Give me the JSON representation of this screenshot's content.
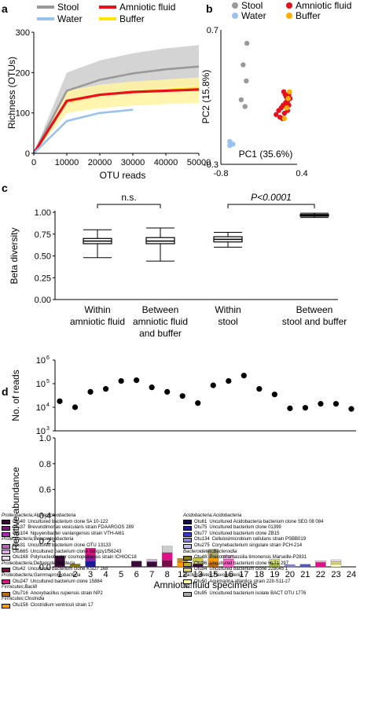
{
  "chart_data": [
    {
      "panel": "a",
      "type": "line",
      "ylabel": "Richness (OTUs)",
      "xlabel": "OTU reads",
      "xlim": [
        0,
        50000
      ],
      "ylim": [
        0,
        300
      ],
      "xticks": [
        0,
        10000,
        20000,
        30000,
        40000,
        50000
      ],
      "yticks": [
        0,
        100,
        200,
        300
      ],
      "legend": [
        "Stool",
        "Water",
        "Amniotic fluid",
        "Buffer"
      ],
      "series": [
        {
          "name": "Stool",
          "color": "#999999",
          "band_color": "#cccccc",
          "x": [
            0,
            10000,
            20000,
            30000,
            40000,
            50000
          ],
          "y": [
            0,
            155,
            182,
            198,
            208,
            215
          ],
          "lower": [
            0,
            118,
            140,
            155,
            163,
            170
          ],
          "upper": [
            0,
            200,
            230,
            248,
            260,
            268
          ]
        },
        {
          "name": "Buffer",
          "color": "#ffe600",
          "band_color": "#fff3a0",
          "x": [
            0,
            10000,
            20000,
            30000,
            40000,
            50000
          ],
          "y": [
            0,
            128,
            145,
            152,
            157,
            162
          ],
          "lower": [
            0,
            100,
            112,
            118,
            122,
            125
          ],
          "upper": [
            0,
            155,
            170,
            178,
            183,
            188
          ]
        },
        {
          "name": "Amniotic fluid",
          "color": "#e8101a",
          "x": [
            0,
            10000,
            20000,
            30000,
            40000,
            50000
          ],
          "y": [
            0,
            130,
            145,
            152,
            155,
            158
          ]
        },
        {
          "name": "Water",
          "color": "#99c2ee",
          "x": [
            0,
            10000,
            20000,
            30000
          ],
          "y": [
            0,
            80,
            100,
            108
          ]
        }
      ]
    },
    {
      "panel": "b",
      "type": "scatter",
      "xlabel": "PC1 (35.6%)",
      "ylabel": "PC2 (15.8%)",
      "xlim": [
        -0.8,
        0.4
      ],
      "ylim": [
        -0.3,
        0.7
      ],
      "xtick_labels": [
        "-0.8",
        "0.4"
      ],
      "ytick_labels": [
        "-0.3",
        "0.7"
      ],
      "legend": [
        "Stool",
        "Water",
        "Amniotic fluid",
        "Buffer"
      ],
      "series": [
        {
          "name": "Stool",
          "color": "#999999",
          "points": [
            [
              -0.39,
              0.6
            ],
            [
              -0.45,
              0.44
            ],
            [
              -0.4,
              0.32
            ],
            [
              -0.48,
              0.18
            ],
            [
              -0.42,
              0.13
            ]
          ]
        },
        {
          "name": "Water",
          "color": "#99c2ee",
          "points": [
            [
              -0.66,
              -0.13
            ],
            [
              -0.61,
              -0.15
            ],
            [
              -0.66,
              -0.16
            ]
          ]
        },
        {
          "name": "Amniotic fluid",
          "color": "#e8101a",
          "points": [
            [
              0.19,
              0.24
            ],
            [
              0.21,
              0.22
            ],
            [
              0.23,
              0.2
            ],
            [
              0.25,
              0.17
            ],
            [
              0.22,
              0.16
            ],
            [
              0.18,
              0.14
            ],
            [
              0.15,
              0.12
            ],
            [
              0.11,
              0.1
            ],
            [
              0.07,
              0.07
            ],
            [
              0.13,
              0.05
            ],
            [
              0.17,
              0.04
            ],
            [
              0.23,
              0.13
            ],
            [
              0.27,
              0.14
            ],
            [
              0.27,
              0.22
            ],
            [
              0.29,
              0.19
            ],
            [
              0.2,
              0.08
            ],
            [
              0.25,
              0.1
            ]
          ]
        },
        {
          "name": "Buffer",
          "color": "#ffb000",
          "points": [
            [
              0.28,
              0.24
            ],
            [
              0.24,
              0.12
            ],
            [
              0.2,
              0.04
            ],
            [
              0.26,
              0.19
            ]
          ]
        }
      ]
    },
    {
      "panel": "c",
      "type": "boxplot",
      "ylabel": "Beta diversity",
      "ylim": [
        0,
        1.0
      ],
      "yticks": [
        "0.00",
        "0.25",
        "0.50",
        "0.75",
        "1.00"
      ],
      "categories": [
        "Within amniotic fluid",
        "Between amniotic fluid and buffer",
        "Within stool",
        "Between stool and buffer"
      ],
      "category_lines": [
        [
          "Within",
          "amniotic fluid"
        ],
        [
          "Between",
          "amniotic fluid",
          "and buffer"
        ],
        [
          "Within",
          "stool"
        ],
        [
          "Between",
          "stool and buffer"
        ]
      ],
      "boxes": [
        {
          "min": 0.48,
          "q1": 0.64,
          "median": 0.67,
          "q3": 0.7,
          "max": 0.8
        },
        {
          "min": 0.44,
          "q1": 0.64,
          "median": 0.67,
          "q3": 0.71,
          "max": 0.82
        },
        {
          "min": 0.6,
          "q1": 0.66,
          "median": 0.69,
          "q3": 0.72,
          "max": 0.77
        },
        {
          "min": 0.94,
          "q1": 0.955,
          "median": 0.965,
          "q3": 0.975,
          "max": 0.99
        }
      ],
      "annotations": [
        {
          "text": "n.s.",
          "between": [
            0,
            1
          ]
        },
        {
          "text": "P<0.0001",
          "between": [
            2,
            3
          ]
        }
      ]
    },
    {
      "panel": "d",
      "type": "scatter+stacked-bar",
      "top_ylabel": "No. of reads",
      "top_yscale": "log",
      "top_yticks": [
        {
          "base": "10",
          "exp": "3",
          "value": 1000
        },
        {
          "base": "10",
          "exp": "4",
          "value": 10000
        },
        {
          "base": "10",
          "exp": "5",
          "value": 100000
        },
        {
          "base": "10",
          "exp": "6",
          "value": 1000000
        }
      ],
      "bottom_ylabel": "Relative abundance",
      "bottom_ylim": [
        0,
        1.0
      ],
      "bottom_yticks": [
        "0.0",
        "0.2",
        "0.4",
        "0.6",
        "0.8",
        "1.0"
      ],
      "xlabel": "Amniotic fluid specimens",
      "categories": [
        "1",
        "2",
        "3",
        "4",
        "5",
        "6",
        "7",
        "8",
        "12",
        "13",
        "15",
        "16",
        "17",
        "18",
        "19",
        "20",
        "21",
        "22",
        "23",
        "24"
      ],
      "reads": [
        18000,
        10000,
        45000,
        60000,
        130000,
        140000,
        70000,
        45000,
        30000,
        15000,
        85000,
        130000,
        220000,
        60000,
        35000,
        9000,
        9500,
        14000,
        14000,
        8500
      ],
      "stacks": [
        [
          {
            "c": "#3a0a3a",
            "v": 0.085
          }
        ],
        [
          {
            "c": "#8a7a12",
            "v": 0.022
          }
        ],
        [
          {
            "c": "#1a1a9a",
            "v": 0.045
          },
          {
            "c": "#8a1aa0",
            "v": 0.04
          },
          {
            "c": "#e01088",
            "v": 0.06
          }
        ],
        [],
        [],
        [
          {
            "c": "#3a0a3a",
            "v": 0.045
          }
        ],
        [
          {
            "c": "#3a0a3a",
            "v": 0.04
          },
          {
            "c": "#d8b0e8",
            "v": 0.018
          }
        ],
        [
          {
            "c": "#7a0a4a",
            "v": 0.05
          },
          {
            "c": "#e01088",
            "v": 0.06
          },
          {
            "c": "#cccccc",
            "v": 0.05
          }
        ],
        [
          {
            "c": "#ff9900",
            "v": 0.035
          },
          {
            "c": "#c08a2a",
            "v": 0.03
          }
        ],
        [
          {
            "c": "#3a0a3a",
            "v": 0.022
          },
          {
            "c": "#dddd88",
            "v": 0.018
          },
          {
            "c": "#cccc44",
            "v": 0.03
          }
        ],
        [
          {
            "c": "#c06a10",
            "v": 0.03
          },
          {
            "c": "#ff9900",
            "v": 0.04
          },
          {
            "c": "#b0a870",
            "v": 0.065
          }
        ],
        [
          {
            "c": "#ff66cc",
            "v": 0.06
          },
          {
            "c": "#f8c8e8",
            "v": 0.03
          }
        ],
        [],
        [],
        [
          {
            "c": "#a8c040",
            "v": 0.03
          },
          {
            "c": "#e6e68a",
            "v": 0.03
          }
        ],
        [
          {
            "c": "#8888cc",
            "v": 0.018
          }
        ],
        [
          {
            "c": "#5555bb",
            "v": 0.02
          }
        ],
        [
          {
            "c": "#e01088",
            "v": 0.035
          },
          {
            "c": "#f8b8d8",
            "v": 0.012
          }
        ],
        [
          {
            "c": "#ffffcc",
            "v": 0.02
          },
          {
            "c": "#dddd66",
            "v": 0.02
          },
          {
            "c": "#eedcee",
            "v": 0.015
          }
        ],
        []
      ]
    }
  ],
  "panel_letters": {
    "a": "a",
    "b": "b",
    "c": "c",
    "d": "d"
  },
  "legend_left": [
    {
      "group": "Proteobacteria;Alphaproteobacteria",
      "items": [
        {
          "color": "#3a0a3a",
          "otu": "Otu40",
          "desc": "Uncultured bacterium clone 5A 10-122"
        },
        {
          "color": "#7a1a7a",
          "otu": "Otu37",
          "desc": "Brevundimonas vesicularis strain FDAARGOS 289"
        },
        {
          "color": "#b020b8",
          "otu": "Otu104",
          "desc": "Nguyenibacter vanlangensis strain VTH-Ai61"
        }
      ]
    },
    {
      "group": "Proteobacteria;Betaproteobacteria",
      "items": [
        {
          "color": "#c060c0",
          "otu": "Otu31",
          "desc": "Uncultured bacterium clone OTU 13133"
        },
        {
          "color": "#e0a8e8",
          "otu": "Otu665",
          "desc": "Uncultured bacterium clone dongzy1f56243"
        },
        {
          "color": "#f0d8f0",
          "otu": "Otu168",
          "desc": "Polynucleobacter cosmopolitanus strain ICHIOC18"
        }
      ]
    },
    {
      "group": "Proteobacteria;Deltaproteobacteria",
      "items": [
        {
          "color": "#7a0a4a",
          "otu": "Otu42",
          "desc": "Uncultured bacterium clone KSD7 168"
        }
      ]
    },
    {
      "group": "Proteobacteria;Gammaproteobacteria",
      "items": [
        {
          "color": "#e01088",
          "otu": "Otu247",
          "desc": "Uncultured bacterium clone 15884"
        }
      ]
    },
    {
      "group": "Firmicutes;Bacilli",
      "items": [
        {
          "color": "#c06a10",
          "otu": "Otu716",
          "desc": "Anoxybacillus rupiensis strain NP2"
        }
      ]
    },
    {
      "group": "Firmicutes;Clostridia",
      "items": [
        {
          "color": "#ff9900",
          "otu": "Otu158",
          "desc": "Clostridium ventriculi strain 17"
        }
      ]
    }
  ],
  "legend_right": [
    {
      "group": "Acidobacteria;Acidobacteria",
      "items": [
        {
          "color": "#0a0a4a",
          "otu": "Otu61",
          "desc": "Uncultured Acidobacteria bacterium clone SEG 08 084"
        },
        {
          "color": "#1a1a9a",
          "otu": "Otu75",
          "desc": "Uncultured bacterium clone 01399"
        },
        {
          "color": "#3a3ad0",
          "otu": "Otu77",
          "desc": "Uncultured bacterium clone ZB15"
        },
        {
          "color": "#8888cc",
          "otu": "Otu134",
          "desc": "Cellulosimicrobium cellulans strain PSBB019"
        },
        {
          "color": "#c0c0ee",
          "otu": "Otu275",
          "desc": "Corynebacterium singulare strain PCH-214"
        }
      ]
    },
    {
      "group": "Bacteroidetes;Bacteroidia",
      "items": [
        {
          "color": "#8a7a12",
          "otu": "Otu48",
          "desc": "Prevotellamassilia timonensis Marseille-P2831"
        },
        {
          "color": "#c0b030",
          "otu": "Otu96",
          "desc": "Uncultured bacterium clone HLT1 297"
        },
        {
          "color": "#d8d070",
          "otu": "Otu94",
          "desc": "Uncultured bacterium clone 228045 1"
        }
      ]
    },
    {
      "group": "Bacteroidetes;Flavobacteriia",
      "items": [
        {
          "color": "#ffffa0",
          "otu": "Otu50",
          "desc": "Aquimarina atlantica strain 22II-S11-z7"
        }
      ]
    },
    {
      "group": "SR1",
      "items": [
        {
          "color": "#aaaaaa",
          "otu": "Otu95",
          "desc": "Uncultured bacterium isolate BACT OTU 1776"
        }
      ]
    }
  ]
}
